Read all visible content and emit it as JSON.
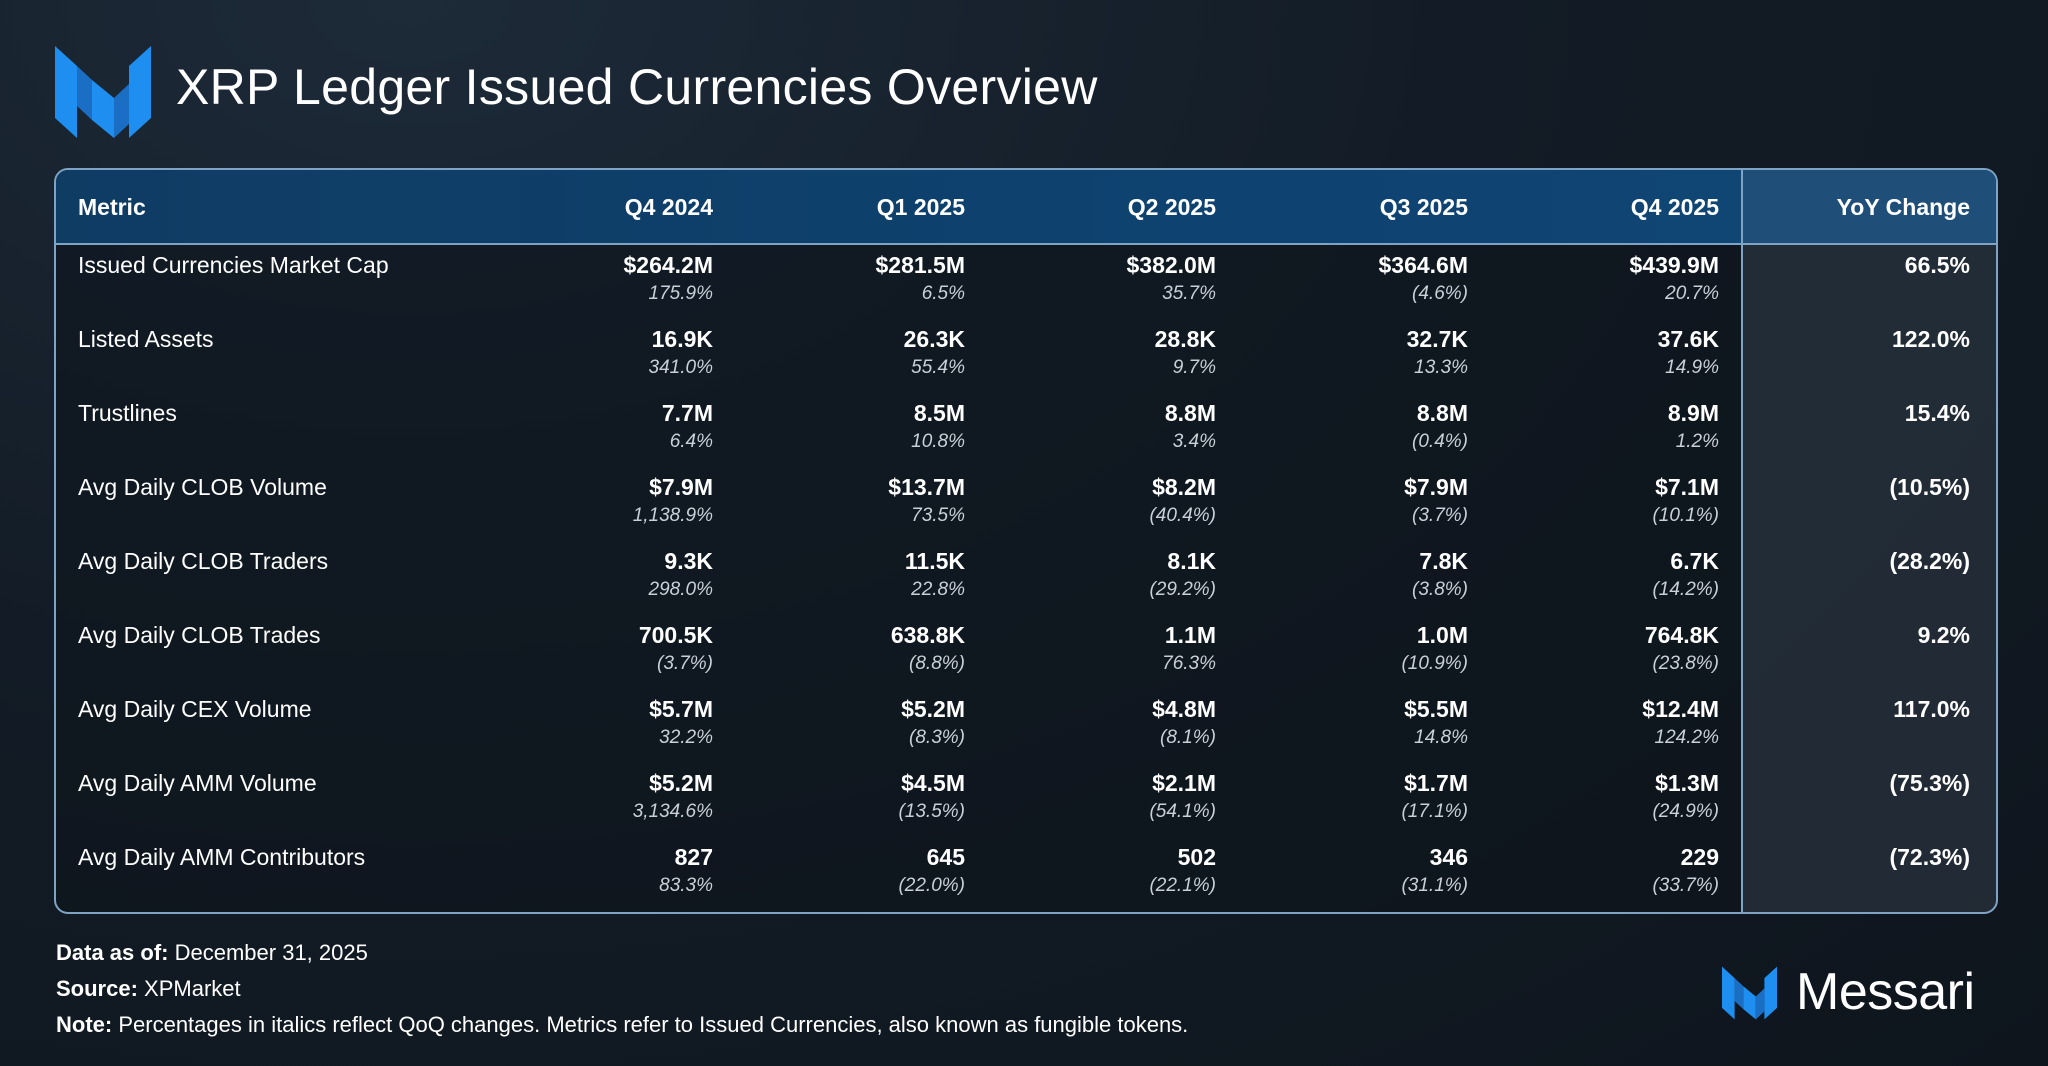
{
  "header": {
    "title": "XRP Ledger Issued Currencies Overview"
  },
  "table": {
    "columns": [
      "Metric",
      "Q4 2024",
      "Q1 2025",
      "Q2 2025",
      "Q3 2025",
      "Q4 2025",
      "YoY Change"
    ],
    "rows": [
      {
        "metric": "Issued Currencies Market Cap",
        "values": [
          "$264.2M",
          "$281.5M",
          "$382.0M",
          "$364.6M",
          "$439.9M"
        ],
        "changes": [
          "175.9%",
          "6.5%",
          "35.7%",
          "(4.6%)",
          "20.7%"
        ],
        "yoy": "66.5%"
      },
      {
        "metric": "Listed Assets",
        "values": [
          "16.9K",
          "26.3K",
          "28.8K",
          "32.7K",
          "37.6K"
        ],
        "changes": [
          "341.0%",
          "55.4%",
          "9.7%",
          "13.3%",
          "14.9%"
        ],
        "yoy": "122.0%"
      },
      {
        "metric": "Trustlines",
        "values": [
          "7.7M",
          "8.5M",
          "8.8M",
          "8.8M",
          "8.9M"
        ],
        "changes": [
          "6.4%",
          "10.8%",
          "3.4%",
          "(0.4%)",
          "1.2%"
        ],
        "yoy": "15.4%"
      },
      {
        "metric": "Avg Daily CLOB Volume",
        "values": [
          "$7.9M",
          "$13.7M",
          "$8.2M",
          "$7.9M",
          "$7.1M"
        ],
        "changes": [
          "1,138.9%",
          "73.5%",
          "(40.4%)",
          "(3.7%)",
          "(10.1%)"
        ],
        "yoy": "(10.5%)"
      },
      {
        "metric": "Avg Daily CLOB Traders",
        "values": [
          "9.3K",
          "11.5K",
          "8.1K",
          "7.8K",
          "6.7K"
        ],
        "changes": [
          "298.0%",
          "22.8%",
          "(29.2%)",
          "(3.8%)",
          "(14.2%)"
        ],
        "yoy": "(28.2%)"
      },
      {
        "metric": "Avg Daily CLOB Trades",
        "values": [
          "700.5K",
          "638.8K",
          "1.1M",
          "1.0M",
          "764.8K"
        ],
        "changes": [
          "(3.7%)",
          "(8.8%)",
          "76.3%",
          "(10.9%)",
          "(23.8%)"
        ],
        "yoy": "9.2%"
      },
      {
        "metric": "Avg Daily CEX Volume",
        "values": [
          "$5.7M",
          "$5.2M",
          "$4.8M",
          "$5.5M",
          "$12.4M"
        ],
        "changes": [
          "32.2%",
          "(8.3%)",
          "(8.1%)",
          "14.8%",
          "124.2%"
        ],
        "yoy": "117.0%"
      },
      {
        "metric": "Avg Daily AMM Volume",
        "values": [
          "$5.2M",
          "$4.5M",
          "$2.1M",
          "$1.7M",
          "$1.3M"
        ],
        "changes": [
          "3,134.6%",
          "(13.5%)",
          "(54.1%)",
          "(17.1%)",
          "(24.9%)"
        ],
        "yoy": "(75.3%)"
      },
      {
        "metric": "Avg Daily AMM Contributors",
        "values": [
          "827",
          "645",
          "502",
          "346",
          "229"
        ],
        "changes": [
          "83.3%",
          "(22.0%)",
          "(22.1%)",
          "(31.1%)",
          "(33.7%)"
        ],
        "yoy": "(72.3%)"
      }
    ]
  },
  "footer": {
    "data_as_of_label": "Data as of:",
    "data_as_of_value": "December 31, 2025",
    "source_label": "Source:",
    "source_value": "XPMarket",
    "note_label": "Note:",
    "note_value": "Percentages in italics reflect QoQ changes. Metrics refer to Issued Currencies, also known as fungible tokens."
  },
  "brand": {
    "name": "Messari",
    "accent_color": "#1e8ff0"
  }
}
